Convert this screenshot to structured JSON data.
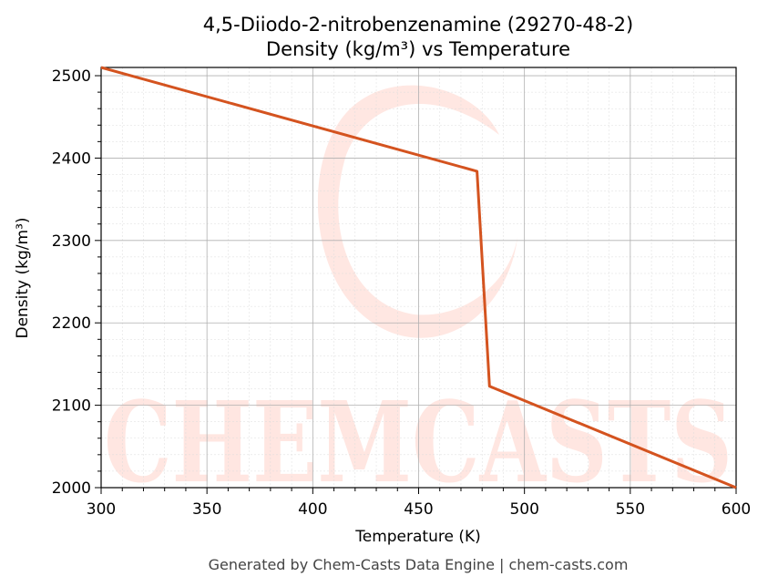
{
  "chart_data": {
    "type": "line",
    "title": "4,5-Diiodo-2-nitrobenzenamine (29270-48-2)",
    "subtitle": "Density (kg/m³) vs Temperature",
    "xlabel": "Temperature (K)",
    "ylabel": "Density (kg/m³)",
    "xlim": [
      300,
      600
    ],
    "ylim": [
      2000,
      2510
    ],
    "xticks": [
      300,
      350,
      400,
      450,
      500,
      550,
      600
    ],
    "yticks": [
      2000,
      2100,
      2200,
      2300,
      2400,
      2500
    ],
    "grid": true,
    "series": [
      {
        "color": "#d4531f",
        "x": [
          300,
          477.6,
          483.5,
          600
        ],
        "y": [
          2510,
          2384,
          2123,
          2000
        ]
      }
    ]
  },
  "watermark": "CHEMCASTS",
  "footer": "Generated by Chem-Casts Data Engine | chem-casts.com"
}
